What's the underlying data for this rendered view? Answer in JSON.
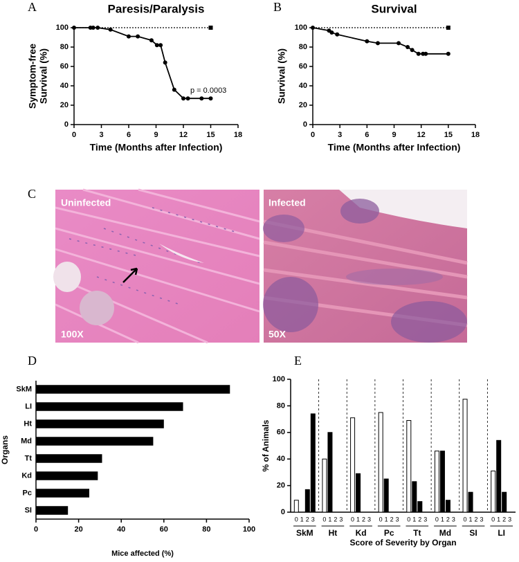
{
  "chart_data": [
    {
      "type": "line",
      "panel": "A",
      "title": "Paresis/Paralysis",
      "xlabel": "Time (Months after Infection)",
      "ylabel": [
        "Symptom-free",
        "Survival (%)"
      ],
      "xlim": [
        0,
        18
      ],
      "xticks": [
        0,
        3,
        6,
        9,
        12,
        15,
        18
      ],
      "ylim": [
        0,
        100
      ],
      "yticks": [
        0,
        20,
        40,
        60,
        80,
        100
      ],
      "annotation": "p = 0.0003",
      "series": [
        {
          "color": "#000000",
          "marker": "circle",
          "x": [
            0,
            1.8,
            2.1,
            2.6,
            4,
            6,
            7,
            8.5,
            9.1,
            9.5,
            10,
            11,
            12,
            12.5,
            14,
            15
          ],
          "values": [
            100,
            100,
            100,
            100,
            98,
            91,
            91,
            87,
            82,
            82,
            64,
            36,
            27,
            27,
            27,
            27
          ]
        },
        {
          "color": "#000000",
          "marker": "square",
          "dash": true,
          "x": [
            0,
            15
          ],
          "values": [
            100,
            100
          ]
        }
      ]
    },
    {
      "type": "line",
      "panel": "B",
      "title": "Survival",
      "xlabel": "Time (Months after Infection)",
      "ylabel": [
        "Survival (%)"
      ],
      "xlim": [
        0,
        18
      ],
      "xticks": [
        0,
        3,
        6,
        9,
        12,
        15,
        18
      ],
      "ylim": [
        0,
        100
      ],
      "yticks": [
        0,
        20,
        40,
        60,
        80,
        100
      ],
      "series": [
        {
          "color": "#000000",
          "marker": "circle",
          "x": [
            0,
            1.8,
            2.1,
            2.7,
            6,
            7.2,
            9.5,
            10.5,
            11,
            11.7,
            12.2,
            12.5,
            15
          ],
          "values": [
            100,
            97,
            95,
            93,
            86,
            84,
            84,
            80,
            77,
            73,
            73,
            73,
            73
          ]
        },
        {
          "color": "#000000",
          "marker": "square",
          "dash": true,
          "x": [
            0,
            15
          ],
          "values": [
            100,
            100
          ]
        }
      ]
    },
    {
      "type": "hbar",
      "panel": "D",
      "xlabel": "Mice affected (%)",
      "ylabel": "Organs",
      "color": "#000000",
      "categories": [
        "SkM",
        "LI",
        "Ht",
        "Md",
        "Tt",
        "Kd",
        "Pc",
        "SI"
      ],
      "values": [
        91,
        69,
        60,
        55,
        31,
        29,
        25,
        15
      ],
      "xlim": [
        0,
        100
      ],
      "xticks": [
        0,
        20,
        40,
        60,
        80,
        100
      ]
    },
    {
      "type": "groupbar",
      "panel": "E",
      "xlabel": "Score of Severity by Organ",
      "ylabel": "% of Animals",
      "categories": [
        "SkM",
        "Ht",
        "Kd",
        "Pc",
        "Tt",
        "Md",
        "SI",
        "LI"
      ],
      "ylim": [
        0,
        100
      ],
      "yticks": [
        0,
        20,
        40,
        60,
        80,
        100
      ],
      "series": [
        {
          "name": "0",
          "color": "#ffffff",
          "values": [
            9,
            40,
            71,
            75,
            69,
            46,
            85,
            31
          ]
        },
        {
          "name": "1",
          "color": "#000000",
          "values": [
            0,
            60,
            29,
            25,
            23,
            46,
            15,
            54
          ]
        },
        {
          "name": "2",
          "color": "#000000",
          "values": [
            17,
            0,
            0,
            0,
            8,
            9,
            0,
            15
          ]
        },
        {
          "name": "3",
          "color": "#000000",
          "values": [
            74,
            0,
            0,
            0,
            0,
            0,
            0,
            0
          ]
        }
      ]
    }
  ],
  "histology": {
    "panel": "C",
    "images": [
      {
        "label": "Uninfected",
        "magnification": "100X"
      },
      {
        "label": "Infected",
        "magnification": "50X"
      }
    ]
  }
}
